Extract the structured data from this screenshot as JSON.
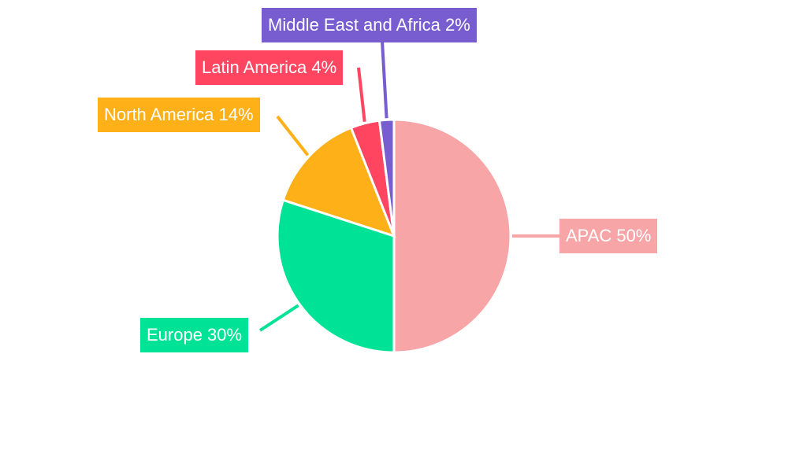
{
  "chart_data": {
    "type": "pie",
    "title": "",
    "categories": [
      "APAC",
      "Europe",
      "North America",
      "Latin America",
      "Middle East and Africa"
    ],
    "values": [
      50,
      30,
      14,
      4,
      2
    ],
    "unit": "%",
    "colors": [
      "#F8A5A7",
      "#00E396",
      "#FEB019",
      "#FF4560",
      "#775DD0"
    ],
    "labels": [
      "APAC 50%",
      "Europe 30%",
      "North America 14%",
      "Latin America 4%",
      "Middle East and Africa 2%"
    ],
    "start_angle_deg": 0,
    "direction": "clockwise",
    "legend": "none",
    "label_style": "outside callout boxes with leader lines"
  }
}
